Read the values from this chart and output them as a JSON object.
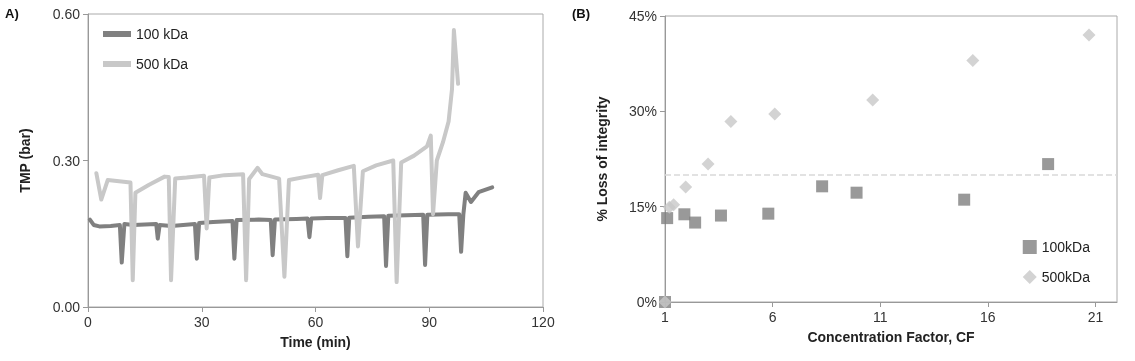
{
  "chart_data": [
    {
      "type": "line",
      "title": "A)",
      "xlabel": "Time (min)",
      "ylabel": "TMP (bar)",
      "xlim": [
        0,
        120
      ],
      "xticks": [
        0,
        30,
        60,
        90,
        120
      ],
      "ylim": [
        0,
        0.6
      ],
      "yticks": [
        {
          "value": 0,
          "label": "0.00"
        },
        {
          "value": 0.3,
          "label": "0.30"
        },
        {
          "value": 0.6,
          "label": "0.60"
        }
      ],
      "grid": false,
      "legend": "top left",
      "marker": "none",
      "line_style": "solid",
      "series": [
        {
          "name": "100 kDa",
          "color": "#808080",
          "x": [
            0.5,
            1.5,
            3,
            6,
            8.4,
            8.9,
            9.6,
            12,
            18,
            18.4,
            18.9,
            22,
            28.2,
            28.7,
            29.3,
            33,
            38.1,
            38.6,
            39.2,
            45,
            48.2,
            48.7,
            49.3,
            55,
            57.9,
            58.4,
            58.9,
            63,
            67.9,
            68.4,
            68.9,
            74,
            78.1,
            78.6,
            79.2,
            84,
            88.4,
            88.9,
            89.5,
            95,
            97.9,
            98.4,
            99,
            99.6,
            101,
            103,
            106.6
          ],
          "values": [
            0.179,
            0.168,
            0.165,
            0.166,
            0.168,
            0.091,
            0.17,
            0.168,
            0.17,
            0.14,
            0.168,
            0.166,
            0.17,
            0.099,
            0.172,
            0.174,
            0.176,
            0.099,
            0.178,
            0.179,
            0.178,
            0.106,
            0.179,
            0.18,
            0.181,
            0.143,
            0.181,
            0.182,
            0.182,
            0.104,
            0.183,
            0.185,
            0.186,
            0.084,
            0.187,
            0.188,
            0.189,
            0.086,
            0.189,
            0.19,
            0.19,
            0.113,
            0.19,
            0.234,
            0.215,
            0.235,
            0.245
          ]
        },
        {
          "name": "500 kDa",
          "color": "#c8c8c8",
          "x": [
            2.2,
            3.5,
            5.2,
            10,
            11.2,
            11.8,
            12.5,
            16,
            20.2,
            21.3,
            21.9,
            23,
            26,
            30.6,
            31.3,
            32,
            36,
            40.9,
            41.7,
            42.5,
            44.7,
            46,
            50.4,
            51.8,
            53,
            57,
            60.7,
            61.2,
            61.8,
            66,
            70.1,
            71.2,
            72.5,
            76,
            80.5,
            81.4,
            82.6,
            86,
            89.4,
            90.4,
            91,
            92,
            93.6,
            95.1,
            96,
            96.5,
            97.6
          ],
          "values": [
            0.274,
            0.22,
            0.26,
            0.256,
            0.255,
            0.055,
            0.234,
            0.25,
            0.267,
            0.266,
            0.055,
            0.263,
            0.265,
            0.269,
            0.161,
            0.265,
            0.27,
            0.272,
            0.055,
            0.262,
            0.285,
            0.272,
            0.263,
            0.062,
            0.26,
            0.266,
            0.271,
            0.223,
            0.27,
            0.28,
            0.289,
            0.124,
            0.278,
            0.29,
            0.3,
            0.051,
            0.296,
            0.31,
            0.329,
            0.351,
            0.19,
            0.3,
            0.337,
            0.38,
            0.446,
            0.567,
            0.457
          ]
        }
      ]
    },
    {
      "type": "scatter",
      "title": "(B)",
      "xlabel": "Concentration Factor, CF",
      "ylabel": "% Loss of integrity",
      "xlim": [
        1,
        22
      ],
      "xticks": [
        1,
        6,
        11,
        16,
        21
      ],
      "ylim": [
        0,
        45
      ],
      "yticks": [
        {
          "value": 0,
          "label": "0%"
        },
        {
          "value": 15,
          "label": "15%"
        },
        {
          "value": 30,
          "label": "30%"
        },
        {
          "value": 45,
          "label": "45%"
        }
      ],
      "grid": false,
      "legend": "bottom right",
      "ref_lines": [
        {
          "axis": "y",
          "value": 20,
          "color": "#d9d9d9",
          "line_style": "dashed"
        }
      ],
      "series": [
        {
          "name": "100kDa",
          "color": "#808080",
          "marker": "square",
          "x": [
            1,
            1.1,
            1.9,
            2.4,
            3.6,
            5.8,
            8.3,
            9.9,
            14.9,
            18.8
          ],
          "values": [
            0,
            13.2,
            13.8,
            12.5,
            13.6,
            13.9,
            18.2,
            17.2,
            16.1,
            21.7
          ]
        },
        {
          "name": "500kDa",
          "color": "#c8c8c8",
          "marker": "diamond",
          "x": [
            1,
            1.2,
            1.4,
            1.96,
            3,
            4.06,
            6.1,
            10.65,
            15.3,
            20.7
          ],
          "values": [
            0,
            14.9,
            15.3,
            18.1,
            21.7,
            28.4,
            29.6,
            31.8,
            38,
            42
          ]
        }
      ]
    }
  ]
}
